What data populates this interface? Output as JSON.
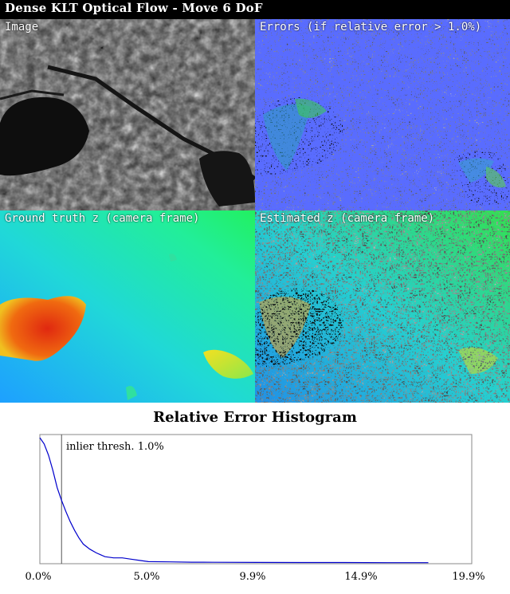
{
  "title": "Dense KLT Optical Flow - Move 6 DoF",
  "panels": {
    "image": {
      "label": "Image"
    },
    "errors": {
      "label": "Errors (if relative error > 1.0%)"
    },
    "ground_truth": {
      "label": "Ground truth z (camera frame)"
    },
    "estimated": {
      "label": "Estimated z (camera frame)"
    }
  },
  "histogram": {
    "title": "Relative Error Histogram",
    "threshold_label": "inlier thresh. 1.0%",
    "ticks": [
      "0.0%",
      "5.0%",
      "9.9%",
      "14.9%",
      "19.9%"
    ]
  },
  "chart_data": {
    "type": "line",
    "title": "Relative Error Histogram",
    "xlabel": "",
    "ylabel": "",
    "xlim": [
      0.0,
      19.9
    ],
    "x_ticks": [
      "0.0%",
      "5.0%",
      "9.9%",
      "14.9%",
      "19.9%"
    ],
    "threshold": 1.0,
    "threshold_label": "inlier thresh. 1.0%",
    "series": [
      {
        "color": "#0000cc",
        "x": [
          0.0,
          0.2,
          0.4,
          0.6,
          0.8,
          1.0,
          1.2,
          1.4,
          1.6,
          1.8,
          2.0,
          2.3,
          2.6,
          3.0,
          3.4,
          3.8,
          4.2,
          4.6,
          5.0,
          6.0,
          7.0,
          8.0,
          10.0,
          12.0,
          14.0,
          16.0,
          17.9
        ],
        "values": [
          1.0,
          0.95,
          0.86,
          0.74,
          0.6,
          0.5,
          0.41,
          0.33,
          0.26,
          0.2,
          0.15,
          0.11,
          0.08,
          0.05,
          0.04,
          0.04,
          0.03,
          0.02,
          0.01,
          0.008,
          0.006,
          0.005,
          0.004,
          0.003,
          0.003,
          0.002,
          0.002
        ]
      }
    ],
    "grid": false,
    "legend": "none"
  }
}
